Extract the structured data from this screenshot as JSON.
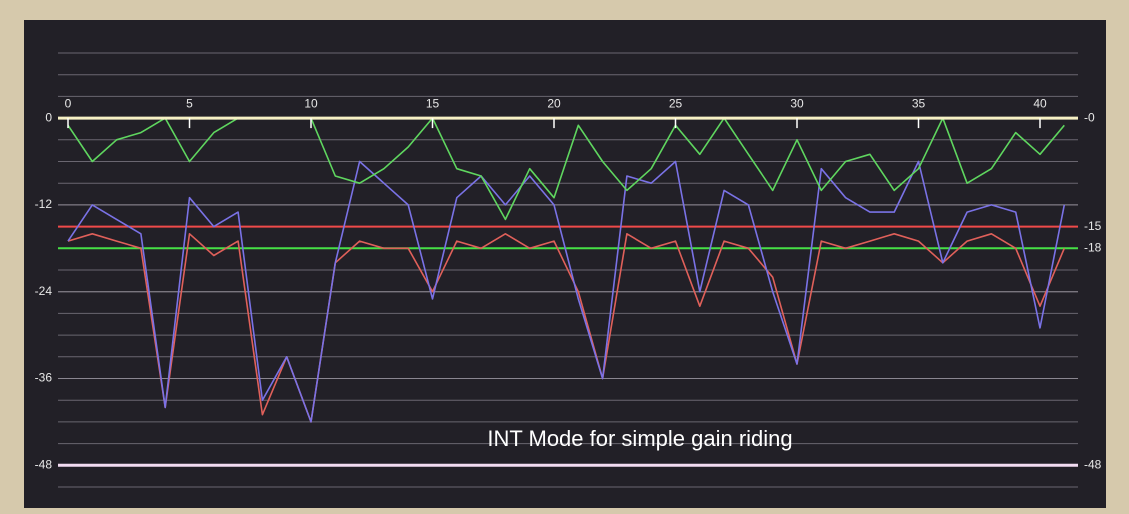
{
  "chart_data": {
    "type": "line",
    "annotation": "INT Mode for simple gain riding",
    "x": [
      0,
      1,
      2,
      3,
      4,
      5,
      6,
      7,
      8,
      9,
      10,
      11,
      12,
      13,
      14,
      15,
      16,
      17,
      18,
      19,
      20,
      21,
      22,
      23,
      24,
      25,
      26,
      27,
      28,
      29,
      30,
      31,
      32,
      33,
      34,
      35,
      36,
      37,
      38,
      39,
      40,
      41
    ],
    "series": [
      {
        "color": "#5fd65f",
        "values": [
          -1,
          -6,
          -3,
          -2,
          0,
          -6,
          -2,
          0,
          0,
          0,
          0,
          -8,
          -9,
          -7,
          -4,
          0,
          -7,
          -8,
          -14,
          -7,
          -11,
          -1,
          -6,
          -10,
          -7,
          -1,
          -5,
          0,
          -5,
          -10,
          -3,
          -10,
          -6,
          -5,
          -10,
          -7,
          0,
          -9,
          -7,
          -2,
          -5,
          -1
        ]
      },
      {
        "color": "#7a72e6",
        "values": [
          -17,
          -12,
          -14,
          -16,
          -40,
          -11,
          -15,
          -13,
          -39,
          -33,
          -42,
          -20,
          -6,
          -9,
          -12,
          -25,
          -11,
          -8,
          -12,
          -8,
          -12,
          -25,
          -36,
          -8,
          -9,
          -6,
          -24,
          -10,
          -12,
          -24,
          -34,
          -7,
          -11,
          -13,
          -13,
          -6,
          -20,
          -13,
          -12,
          -13,
          -29,
          -12
        ]
      },
      {
        "color": "#e0605a",
        "values": [
          -17,
          -16,
          -17,
          -18,
          -40,
          -16,
          -19,
          -17,
          -41,
          -33,
          -42,
          -20,
          -17,
          -18,
          -18,
          -24,
          -17,
          -18,
          -16,
          -18,
          -17,
          -24,
          -36,
          -16,
          -18,
          -17,
          -26,
          -17,
          -18,
          -22,
          -34,
          -17,
          -18,
          -17,
          -16,
          -17,
          -20,
          -17,
          -16,
          -18,
          -26,
          -18
        ]
      }
    ],
    "xlim": [
      0,
      41.5
    ],
    "xticks": [
      0,
      5,
      10,
      15,
      20,
      25,
      30,
      35,
      40
    ],
    "ylim": [
      -51,
      9
    ],
    "yticks": [
      0,
      -12,
      -24,
      -36,
      -48
    ],
    "ygrid": [
      9,
      6,
      3,
      -3,
      -6,
      -9,
      -12,
      -15,
      -18,
      -21,
      -24,
      -27,
      -30,
      -33,
      -36,
      -39,
      -42,
      -45,
      -51
    ],
    "right_ticks": [
      {
        "value": 0,
        "label": "-0",
        "color": "#f6f0c4"
      },
      {
        "value": -48,
        "label": "-48",
        "color": "#f2dcf2"
      }
    ],
    "reference_lines": [
      {
        "value": -15,
        "label": "-15",
        "color": "#f04a4a"
      },
      {
        "value": -18,
        "label": "-18",
        "color": "#46e046"
      }
    ]
  }
}
